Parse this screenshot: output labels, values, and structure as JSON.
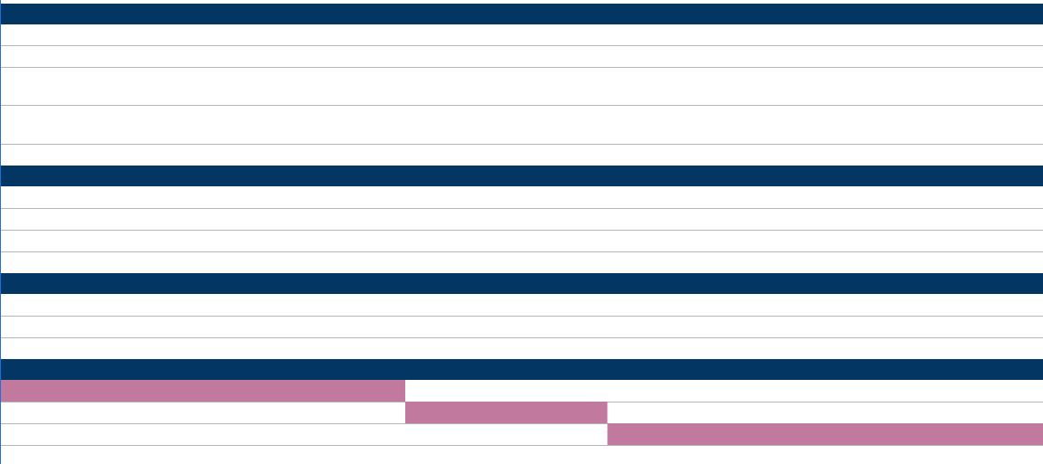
{
  "colors": {
    "section_header": "#043663",
    "task_bar": "#c17a9e",
    "gridline": "#b5b5c0",
    "left_edge": "#1f6fd6",
    "background": "#ffffff"
  },
  "chart_data": {
    "type": "bar",
    "subtype": "gantt",
    "title": "",
    "xlabel": "",
    "ylabel": "",
    "tick_labels": [],
    "grid": true,
    "sections": [
      {
        "rows": [
          {},
          {},
          {},
          {},
          {}
        ]
      },
      {
        "rows": [
          {},
          {},
          {},
          {}
        ]
      },
      {
        "rows": [
          {},
          {},
          {}
        ]
      },
      {
        "rows": [
          {
            "start": 0.0,
            "end": 0.388
          },
          {
            "start": 0.388,
            "end": 0.582
          },
          {
            "start": 0.582,
            "end": 1.0
          },
          {}
        ]
      }
    ],
    "x_range": [
      0,
      1
    ]
  }
}
